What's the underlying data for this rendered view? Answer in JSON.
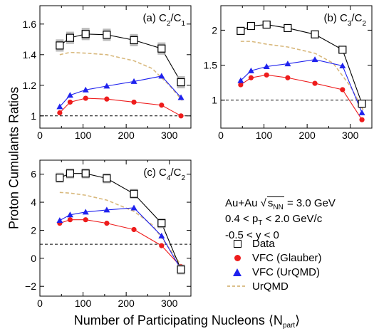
{
  "chart_data": [
    {
      "id": "a",
      "type": "line",
      "panel_label": "(a) ",
      "ratio_num": {
        "base": "C",
        "sub": "2"
      },
      "ratio_den": {
        "base": "C",
        "sub": "1"
      },
      "xlim": [
        0,
        350
      ],
      "ylim": [
        0.92,
        1.72
      ],
      "x_ticks": [
        0,
        100,
        200,
        300
      ],
      "y_ticks": [
        1,
        1.2,
        1.4,
        1.6
      ],
      "y_tick_labels": [
        "1",
        "1.2",
        "1.4",
        "1.6"
      ],
      "reference_line": 1,
      "sys_error": 0.04,
      "series": [
        {
          "key": "data",
          "x": [
            46,
            70,
            106,
            155,
            218,
            282,
            327
          ],
          "values": [
            1.46,
            1.51,
            1.535,
            1.53,
            1.495,
            1.44,
            1.22
          ]
        },
        {
          "key": "glauber",
          "x": [
            46,
            70,
            106,
            155,
            218,
            282,
            327
          ],
          "values": [
            1.02,
            1.09,
            1.115,
            1.11,
            1.09,
            1.07,
            1.0
          ]
        },
        {
          "key": "urqmd_vfc",
          "x": [
            46,
            70,
            106,
            155,
            218,
            282,
            327
          ],
          "values": [
            1.06,
            1.135,
            1.17,
            1.195,
            1.225,
            1.26,
            1.12
          ]
        },
        {
          "key": "urqmd",
          "x": [
            46,
            70,
            106,
            155,
            218,
            260,
            300,
            330
          ],
          "values": [
            1.4,
            1.415,
            1.41,
            1.4,
            1.36,
            1.31,
            1.2,
            1.1
          ]
        }
      ]
    },
    {
      "id": "b",
      "type": "line",
      "panel_label": "(b) ",
      "ratio_num": {
        "base": "C",
        "sub": "3"
      },
      "ratio_den": {
        "base": "C",
        "sub": "2"
      },
      "xlim": [
        0,
        350
      ],
      "ylim": [
        0.6,
        2.35
      ],
      "x_ticks": [
        0,
        100,
        200,
        300
      ],
      "y_ticks": [
        1,
        1.5,
        2
      ],
      "y_tick_labels": [
        "1",
        "1.5",
        "2"
      ],
      "reference_line": 1,
      "sys_error": 0.05,
      "series": [
        {
          "key": "data",
          "x": [
            46,
            70,
            106,
            155,
            218,
            282,
            327
          ],
          "values": [
            1.99,
            2.06,
            2.08,
            2.03,
            1.94,
            1.72,
            0.95
          ]
        },
        {
          "key": "glauber",
          "x": [
            46,
            70,
            106,
            155,
            218,
            282,
            327
          ],
          "values": [
            1.22,
            1.32,
            1.36,
            1.32,
            1.24,
            1.15,
            0.72
          ]
        },
        {
          "key": "urqmd_vfc",
          "x": [
            46,
            70,
            106,
            155,
            218,
            282,
            327
          ],
          "values": [
            1.28,
            1.42,
            1.48,
            1.52,
            1.58,
            1.49,
            0.82
          ]
        },
        {
          "key": "urqmd",
          "x": [
            46,
            70,
            106,
            155,
            218,
            260,
            300,
            330
          ],
          "values": [
            1.84,
            1.84,
            1.8,
            1.76,
            1.67,
            1.53,
            1.2,
            0.86
          ]
        }
      ]
    },
    {
      "id": "c",
      "type": "line",
      "panel_label": "(c) ",
      "ratio_num": {
        "base": "C",
        "sub": "4"
      },
      "ratio_den": {
        "base": "C",
        "sub": "2"
      },
      "xlim": [
        0,
        350
      ],
      "ylim": [
        -2.7,
        7.0
      ],
      "x_ticks": [
        0,
        100,
        200,
        300
      ],
      "y_ticks": [
        -2,
        0,
        2,
        4,
        6
      ],
      "y_tick_labels": [
        "−2",
        "0",
        "2",
        "4",
        "6"
      ],
      "reference_line": 1,
      "sys_error": 0.35,
      "series": [
        {
          "key": "data",
          "x": [
            46,
            70,
            106,
            155,
            218,
            282,
            327
          ],
          "values": [
            5.75,
            6.05,
            6.05,
            5.7,
            4.6,
            2.5,
            -0.8
          ]
        },
        {
          "key": "glauber",
          "x": [
            46,
            70,
            106,
            155,
            218,
            282,
            327
          ],
          "values": [
            2.5,
            2.75,
            2.75,
            2.5,
            2.05,
            0.9,
            -0.6
          ]
        },
        {
          "key": "urqmd_vfc",
          "x": [
            46,
            70,
            106,
            155,
            218,
            282,
            327
          ],
          "values": [
            2.7,
            3.1,
            3.3,
            3.45,
            3.6,
            1.6,
            -0.8
          ]
        },
        {
          "key": "urqmd",
          "x": [
            46,
            70,
            106,
            155,
            218,
            260,
            300,
            330
          ],
          "values": [
            4.7,
            4.65,
            4.5,
            4.15,
            3.35,
            2.4,
            0.7,
            -0.6
          ]
        }
      ]
    }
  ],
  "axes": {
    "xlabel_main": "Number of Participating Nucleons ⟨N",
    "xlabel_sub": "part",
    "xlabel_close": "⟩",
    "ylabel": "Proton Cumulants Ratios"
  },
  "info": {
    "system": "Au+Au ",
    "sqrt_s": "s",
    "sqrt_s_sub": "NN",
    "energy": " = 3.0 GeV",
    "pt_low": "0.4 < p",
    "pt_sub": "T",
    "pt_high": " < 2.0 GeV/c",
    "rapidity": "-0.5 < y < 0"
  },
  "legend": [
    {
      "key": "data",
      "label": "Data",
      "marker": "open-square",
      "color": "#000000"
    },
    {
      "key": "glauber",
      "label": "VFC (Glauber)",
      "marker": "circle",
      "color": "#ee1c1c"
    },
    {
      "key": "urqmd_vfc",
      "label": "VFC (UrQMD)",
      "marker": "triangle",
      "color": "#1f22ee"
    },
    {
      "key": "urqmd",
      "label": "UrQMD",
      "marker": "dashed-line",
      "color": "#d8b87c"
    }
  ],
  "colors": {
    "data": "#000000",
    "glauber": "#ee1c1c",
    "urqmd_vfc": "#1f22ee",
    "urqmd": "#d8b87c",
    "sys_band": "#aaaaaa"
  }
}
